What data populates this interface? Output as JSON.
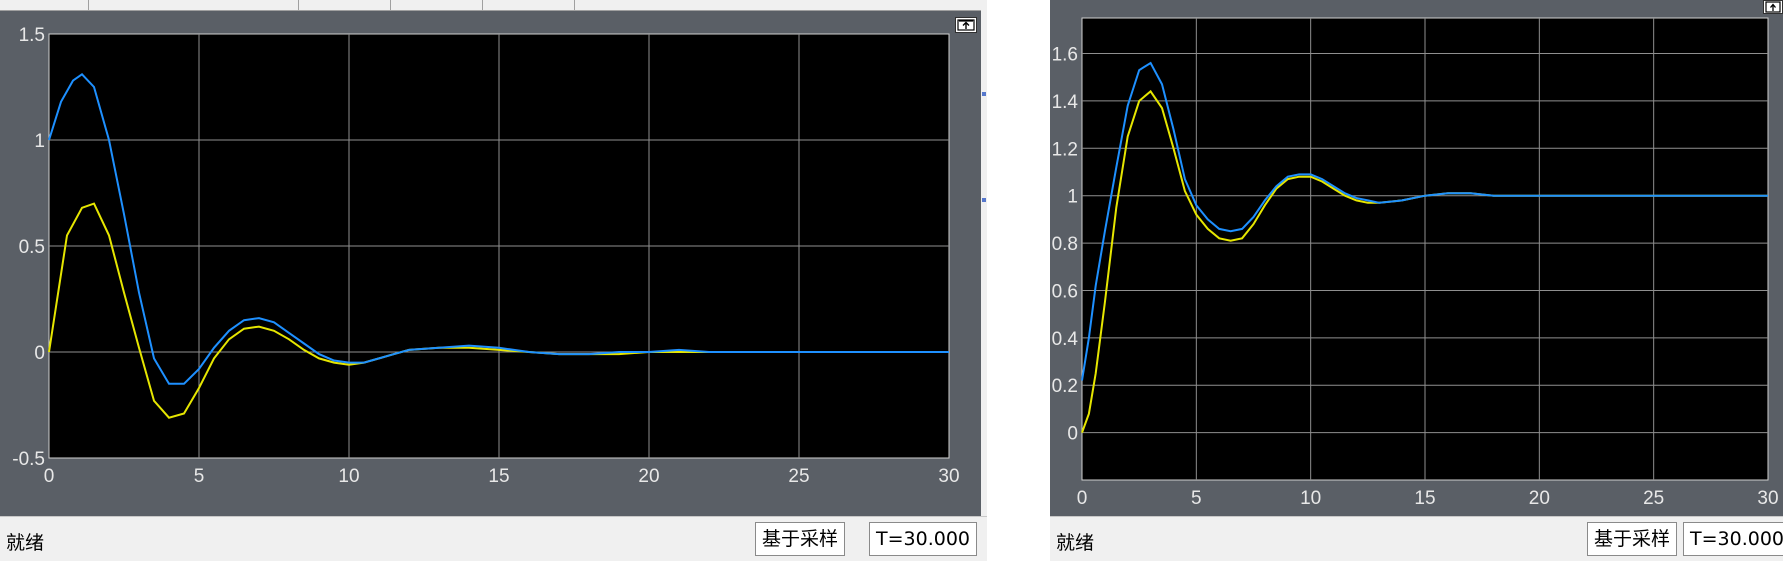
{
  "status": {
    "ready_text": "就绪",
    "mode_text": "基于采样",
    "time_text": "T=30.000"
  },
  "colors": {
    "yellow": "#e6e600",
    "blue": "#1e90ff",
    "grid": "#8f8f8f",
    "axes_bg": "#000000",
    "frame_bg": "#5a5f66"
  },
  "icons": {
    "undock": "undock-icon"
  },
  "chart_data": [
    {
      "type": "line",
      "xlim": [
        0,
        30
      ],
      "ylim": [
        -0.5,
        1.5
      ],
      "xticks": [
        "0",
        "5",
        "10",
        "15",
        "20",
        "25",
        "30"
      ],
      "yticks": [
        "-0.5",
        "0",
        "0.5",
        "1",
        "1.5"
      ],
      "grid": true,
      "series": [
        {
          "color": "yellow",
          "x": [
            0,
            0.6,
            1.1,
            1.5,
            2,
            2.5,
            3,
            3.5,
            4,
            4.5,
            5,
            5.5,
            6,
            6.5,
            7,
            7.5,
            8,
            8.5,
            9,
            9.5,
            10,
            10.5,
            11,
            11.5,
            12,
            13,
            14,
            15,
            16,
            17,
            18,
            19,
            20,
            21,
            22,
            23,
            24,
            25,
            26,
            27,
            28,
            29,
            30
          ],
          "y": [
            0,
            0.55,
            0.68,
            0.7,
            0.55,
            0.28,
            0.02,
            -0.23,
            -0.31,
            -0.29,
            -0.17,
            -0.03,
            0.06,
            0.11,
            0.12,
            0.1,
            0.06,
            0.01,
            -0.03,
            -0.05,
            -0.06,
            -0.05,
            -0.03,
            -0.01,
            0.01,
            0.02,
            0.02,
            0.01,
            0.0,
            -0.01,
            -0.01,
            -0.01,
            0.0,
            0.0,
            0.0,
            0.0,
            0.0,
            0.0,
            0.0,
            0.0,
            0.0,
            0.0,
            0.0
          ]
        },
        {
          "color": "blue",
          "x": [
            0,
            0.4,
            0.8,
            1.1,
            1.5,
            2,
            2.5,
            3,
            3.5,
            4,
            4.5,
            5,
            5.5,
            6,
            6.5,
            7,
            7.5,
            8,
            8.5,
            9,
            9.5,
            10,
            10.5,
            11,
            11.5,
            12,
            13,
            14,
            15,
            16,
            17,
            18,
            19,
            20,
            21,
            22,
            23,
            24,
            25,
            26,
            27,
            28,
            29,
            30
          ],
          "y": [
            1.0,
            1.18,
            1.28,
            1.31,
            1.25,
            1.0,
            0.65,
            0.28,
            -0.03,
            -0.15,
            -0.15,
            -0.08,
            0.02,
            0.1,
            0.15,
            0.16,
            0.14,
            0.09,
            0.04,
            -0.01,
            -0.04,
            -0.05,
            -0.05,
            -0.03,
            -0.01,
            0.01,
            0.02,
            0.03,
            0.02,
            0.0,
            -0.01,
            -0.01,
            0.0,
            0.0,
            0.01,
            0.0,
            0.0,
            0.0,
            0.0,
            0.0,
            0.0,
            0.0,
            0.0,
            0.0
          ]
        }
      ]
    },
    {
      "type": "line",
      "xlim": [
        0,
        30
      ],
      "ylim": [
        -0.2,
        1.75
      ],
      "xticks": [
        "0",
        "5",
        "10",
        "15",
        "20",
        "25",
        "30"
      ],
      "yticks": [
        "0",
        "0.2",
        "0.4",
        "0.6",
        "0.8",
        "1",
        "1.2",
        "1.4",
        "1.6"
      ],
      "grid": true,
      "series": [
        {
          "color": "yellow",
          "x": [
            0,
            0.3,
            0.6,
            1,
            1.5,
            2,
            2.5,
            3,
            3.5,
            4,
            4.5,
            5,
            5.5,
            6,
            6.5,
            7,
            7.5,
            8,
            8.5,
            9,
            9.5,
            10,
            10.5,
            11,
            11.5,
            12,
            12.5,
            13,
            14,
            15,
            16,
            17,
            18,
            19,
            20,
            21,
            22,
            23,
            24,
            25,
            26,
            27,
            28,
            29,
            30
          ],
          "y": [
            0,
            0.08,
            0.25,
            0.55,
            0.95,
            1.25,
            1.4,
            1.44,
            1.37,
            1.2,
            1.02,
            0.92,
            0.86,
            0.82,
            0.81,
            0.82,
            0.88,
            0.96,
            1.03,
            1.07,
            1.08,
            1.08,
            1.06,
            1.03,
            1.0,
            0.98,
            0.97,
            0.97,
            0.98,
            1.0,
            1.01,
            1.01,
            1.0,
            1.0,
            1.0,
            1.0,
            1.0,
            1.0,
            1.0,
            1.0,
            1.0,
            1.0,
            1.0,
            1.0,
            1.0
          ]
        },
        {
          "color": "blue",
          "x": [
            0,
            0.3,
            0.6,
            1,
            1.5,
            2,
            2.5,
            3,
            3.5,
            4,
            4.5,
            5,
            5.5,
            6,
            6.5,
            7,
            7.5,
            8,
            8.5,
            9,
            9.5,
            10,
            10.5,
            11,
            11.5,
            12,
            12.5,
            13,
            14,
            15,
            16,
            17,
            18,
            19,
            20,
            21,
            22,
            23,
            24,
            25,
            26,
            27,
            28,
            29,
            30
          ],
          "y": [
            0.22,
            0.4,
            0.62,
            0.85,
            1.12,
            1.38,
            1.53,
            1.56,
            1.47,
            1.28,
            1.07,
            0.96,
            0.9,
            0.86,
            0.85,
            0.86,
            0.91,
            0.98,
            1.04,
            1.08,
            1.09,
            1.09,
            1.07,
            1.04,
            1.01,
            0.99,
            0.98,
            0.97,
            0.98,
            1.0,
            1.01,
            1.01,
            1.0,
            1.0,
            1.0,
            1.0,
            1.0,
            1.0,
            1.0,
            1.0,
            1.0,
            1.0,
            1.0,
            1.0,
            1.0
          ]
        }
      ]
    }
  ]
}
